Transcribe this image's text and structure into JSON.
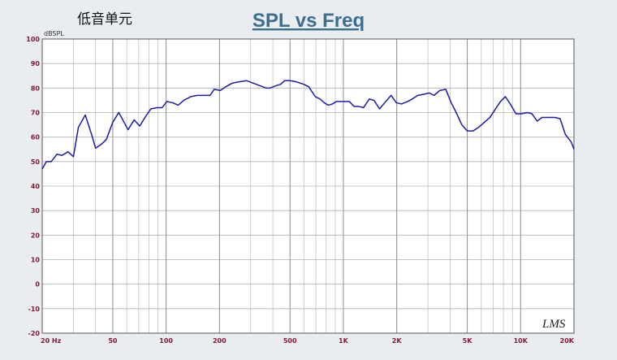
{
  "chart_data": {
    "type": "line",
    "title": "SPL vs Freq",
    "subtitle": "低音单元",
    "y_label": "dBSPL",
    "logo": "LMS",
    "xscale": "log",
    "xlim": [
      20,
      20000
    ],
    "xticks": [
      {
        "value": 20,
        "label": "20 Hz"
      },
      50,
      100,
      200,
      500,
      {
        "value": 1000,
        "label": "1K"
      },
      {
        "value": 2000,
        "label": "2K"
      },
      {
        "value": 5000,
        "label": "5K"
      },
      {
        "value": 10000,
        "label": "10K"
      },
      {
        "value": 20000,
        "label": "20K"
      }
    ],
    "ylim": [
      -20,
      100
    ],
    "yticks": [
      -20,
      -10,
      0,
      10,
      20,
      30,
      40,
      50,
      60,
      70,
      80,
      90,
      100
    ],
    "grid": true,
    "x": [
      20,
      21.1,
      22.5,
      24.2,
      25.8,
      28,
      30,
      32,
      35,
      38,
      40,
      43,
      46,
      50,
      54,
      57,
      61,
      66,
      71,
      76,
      82,
      89,
      95,
      101,
      109,
      117,
      126,
      138,
      150,
      163,
      177,
      187,
      202,
      217,
      236,
      257,
      285,
      310,
      337,
      366,
      386,
      419,
      442,
      466,
      501,
      545,
      599,
      638,
      694,
      740,
      780,
      822,
      867,
      914,
      964,
      1030,
      1080,
      1150,
      1220,
      1300,
      1400,
      1490,
      1600,
      1710,
      1860,
      1990,
      2130,
      2300,
      2440,
      2630,
      2860,
      3050,
      3250,
      3500,
      3780,
      4060,
      4330,
      4660,
      5000,
      5390,
      5800,
      6240,
      6710,
      7300,
      7700,
      8200,
      8830,
      9410,
      10100,
      10900,
      11600,
      12400,
      13200,
      14400,
      15600,
      16700,
      17900,
      19300,
      20000
    ],
    "series": [
      {
        "color": "#1c1ca8",
        "values": [
          47,
          50,
          50,
          53,
          52.5,
          54,
          52,
          64,
          69,
          61,
          55.5,
          57,
          59,
          66,
          70,
          67,
          63,
          67,
          64.5,
          68,
          71.5,
          72,
          72,
          74.5,
          74,
          73,
          75,
          76.5,
          77,
          77,
          77,
          79.5,
          79,
          80.5,
          82,
          82.5,
          83,
          82,
          81,
          80,
          80,
          81,
          81.5,
          83,
          83,
          82.5,
          81.5,
          80.5,
          76.5,
          75.5,
          74,
          73,
          73.5,
          74.5,
          74.5,
          74.5,
          74.5,
          72.5,
          72.5,
          72,
          75.5,
          75,
          71.5,
          74,
          77,
          74,
          73.5,
          74.5,
          75.5,
          77,
          77.5,
          78,
          77,
          79,
          79.5,
          74,
          70,
          65,
          62.5,
          62.5,
          64,
          66,
          68,
          72,
          74.5,
          76.5,
          73,
          69.5,
          69.5,
          70,
          69.5,
          66.5,
          68,
          68,
          68,
          67.5,
          61,
          58,
          55
        ]
      }
    ]
  }
}
